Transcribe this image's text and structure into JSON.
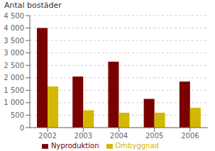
{
  "chart_data": {
    "type": "bar",
    "ylabel": "Antal bostäder",
    "categories": [
      "2002",
      "2003",
      "2004",
      "2005",
      "2006"
    ],
    "series": [
      {
        "name": "Nyproduktion",
        "color": "#7B0000",
        "values": [
          4000,
          2050,
          2650,
          1150,
          1850
        ]
      },
      {
        "name": "Ombyggnad",
        "color": "#D4B800",
        "values": [
          1650,
          700,
          600,
          600,
          800
        ]
      }
    ],
    "ylim": [
      0,
      4500
    ],
    "yticks": [
      0,
      500,
      {
        "value": 1000,
        "label": "1 000"
      },
      {
        "value": 1500,
        "label": "1 500"
      },
      {
        "value": 2000,
        "label": "2 000"
      },
      {
        "value": 2500,
        "label": "2 500"
      },
      {
        "value": 3000,
        "label": "3 000"
      },
      {
        "value": 3500,
        "label": "3 500"
      },
      {
        "value": 4000,
        "label": "4 000"
      },
      {
        "value": 4500,
        "label": "4 500"
      }
    ],
    "grid": true,
    "legend": "bottom"
  }
}
